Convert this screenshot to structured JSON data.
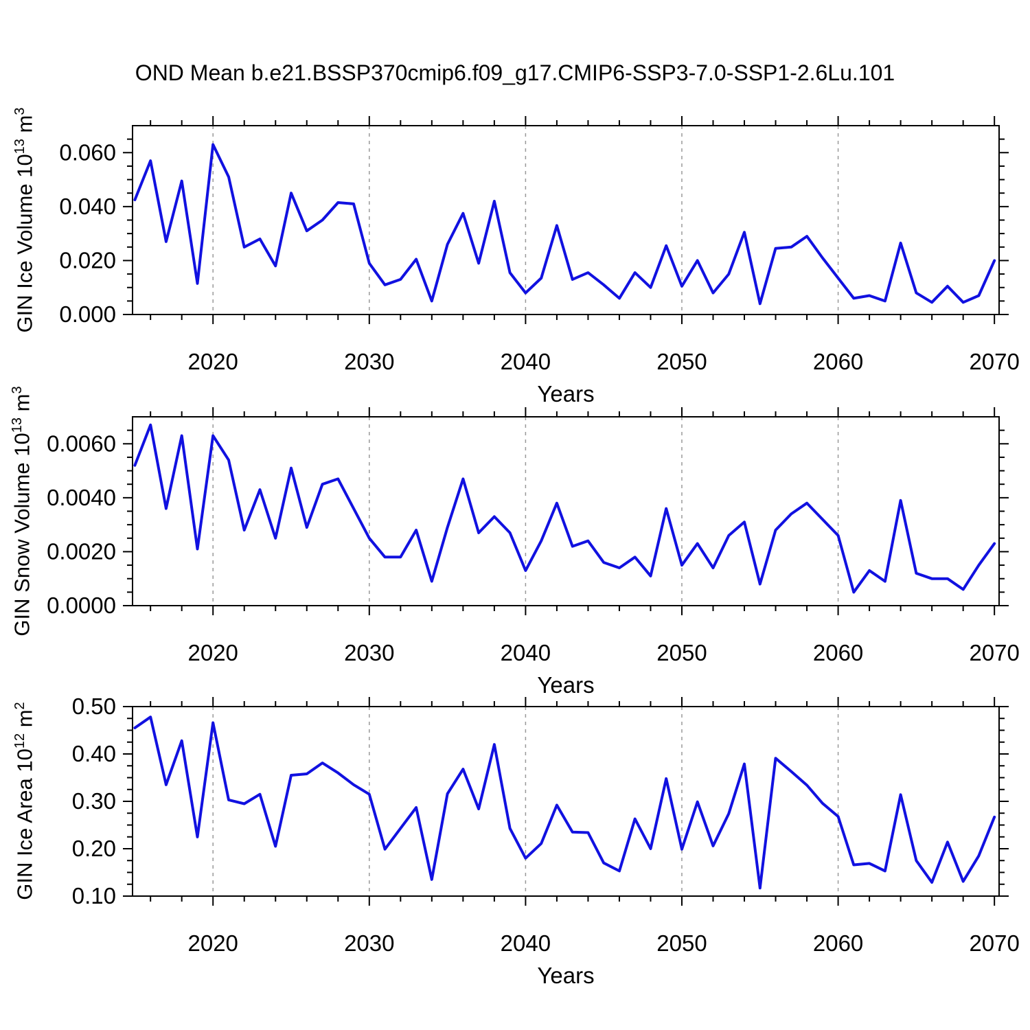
{
  "chart_data": {
    "type": "line",
    "title": "OND Mean b.e21.BSSP370cmip6.f09_g17.CMIP6-SSP3-7.0-SSP1-2.6Lu.101",
    "xlabel": "Years",
    "line_color": "#1111E0",
    "grid_color": "#999999",
    "x_axis": {
      "xlim": [
        2014.85,
        2070.3
      ],
      "major_ticks": [
        2020,
        2030,
        2040,
        2050,
        2060,
        2070
      ],
      "minor_tick_step": 2,
      "gridline_years": [
        2020,
        2030,
        2040,
        2050,
        2060
      ]
    },
    "years": [
      2015,
      2016,
      2017,
      2018,
      2019,
      2020,
      2021,
      2022,
      2023,
      2024,
      2025,
      2026,
      2027,
      2028,
      2029,
      2030,
      2031,
      2032,
      2033,
      2034,
      2035,
      2036,
      2037,
      2038,
      2039,
      2040,
      2041,
      2042,
      2043,
      2044,
      2045,
      2046,
      2047,
      2048,
      2049,
      2050,
      2051,
      2052,
      2053,
      2054,
      2055,
      2056,
      2057,
      2058,
      2059,
      2060,
      2061,
      2062,
      2063,
      2064,
      2065,
      2066,
      2067,
      2068,
      2069,
      2070
    ],
    "panels": [
      {
        "name": "gin-ice-volume",
        "ylabel_prefix": "GIN Ice Volume 10",
        "ylabel_exp": "13",
        "ylabel_mid": " m",
        "ylabel_exp2": "3",
        "ylim": [
          0,
          0.07
        ],
        "ytick_values": [
          0.0,
          0.02,
          0.04,
          0.06
        ],
        "ytick_labels": [
          "0.000",
          "0.020",
          "0.040",
          "0.060"
        ],
        "yminor_step": 0.005,
        "values": [
          0.0425,
          0.057,
          0.027,
          0.0495,
          0.0115,
          0.063,
          0.051,
          0.025,
          0.028,
          0.018,
          0.045,
          0.031,
          0.035,
          0.0415,
          0.041,
          0.019,
          0.011,
          0.013,
          0.0205,
          0.005,
          0.026,
          0.0375,
          0.019,
          0.042,
          0.0155,
          0.008,
          0.0135,
          0.033,
          0.013,
          0.0155,
          0.011,
          0.006,
          0.0155,
          0.01,
          0.0255,
          0.0105,
          0.02,
          0.008,
          0.015,
          0.0305,
          0.004,
          0.0245,
          0.025,
          0.029,
          0.021,
          0.0135,
          0.006,
          0.007,
          0.005,
          0.0265,
          0.008,
          0.0045,
          0.0105,
          0.0045,
          0.007,
          0.02
        ]
      },
      {
        "name": "gin-snow-volume",
        "ylabel_prefix": "GIN Snow Volume 10",
        "ylabel_exp": "13",
        "ylabel_mid": " m",
        "ylabel_exp2": "3",
        "ylim": [
          0,
          0.007
        ],
        "ytick_values": [
          0.0,
          0.002,
          0.004,
          0.006
        ],
        "ytick_labels": [
          "0.0000",
          "0.0020",
          "0.0040",
          "0.0060"
        ],
        "yminor_step": 0.0005,
        "values": [
          0.0052,
          0.0067,
          0.0036,
          0.0063,
          0.0021,
          0.0063,
          0.0054,
          0.0028,
          0.0043,
          0.0025,
          0.0051,
          0.0029,
          0.0045,
          0.0047,
          0.0036,
          0.0025,
          0.0018,
          0.0018,
          0.0028,
          0.0009,
          0.0029,
          0.0047,
          0.0027,
          0.0033,
          0.0027,
          0.0013,
          0.0024,
          0.0038,
          0.0022,
          0.0024,
          0.0016,
          0.0014,
          0.0018,
          0.0011,
          0.0036,
          0.0015,
          0.0023,
          0.0014,
          0.0026,
          0.0031,
          0.0008,
          0.0028,
          0.0034,
          0.0038,
          0.0032,
          0.0026,
          0.0005,
          0.0013,
          0.0009,
          0.0039,
          0.0012,
          0.001,
          0.001,
          0.0006,
          0.0015,
          0.0023
        ]
      },
      {
        "name": "gin-ice-area",
        "ylabel_prefix": "GIN Ice Area 10",
        "ylabel_exp": "12",
        "ylabel_mid": " m",
        "ylabel_exp2": "2",
        "ylim": [
          0.1,
          0.5
        ],
        "ytick_values": [
          0.1,
          0.2,
          0.3,
          0.4,
          0.5
        ],
        "ytick_labels": [
          "0.10",
          "0.20",
          "0.30",
          "0.40",
          "0.50"
        ],
        "yminor_step": 0.025,
        "values": [
          0.455,
          0.478,
          0.335,
          0.428,
          0.225,
          0.466,
          0.303,
          0.295,
          0.315,
          0.205,
          0.355,
          0.358,
          0.381,
          0.36,
          0.335,
          0.315,
          0.199,
          0.243,
          0.287,
          0.135,
          0.316,
          0.368,
          0.284,
          0.42,
          0.243,
          0.18,
          0.211,
          0.292,
          0.235,
          0.234,
          0.17,
          0.153,
          0.263,
          0.2,
          0.348,
          0.199,
          0.299,
          0.206,
          0.274,
          0.379,
          0.117,
          0.391,
          0.363,
          0.334,
          0.296,
          0.268,
          0.166,
          0.169,
          0.153,
          0.314,
          0.175,
          0.129,
          0.214,
          0.131,
          0.185,
          0.267
        ]
      }
    ]
  }
}
